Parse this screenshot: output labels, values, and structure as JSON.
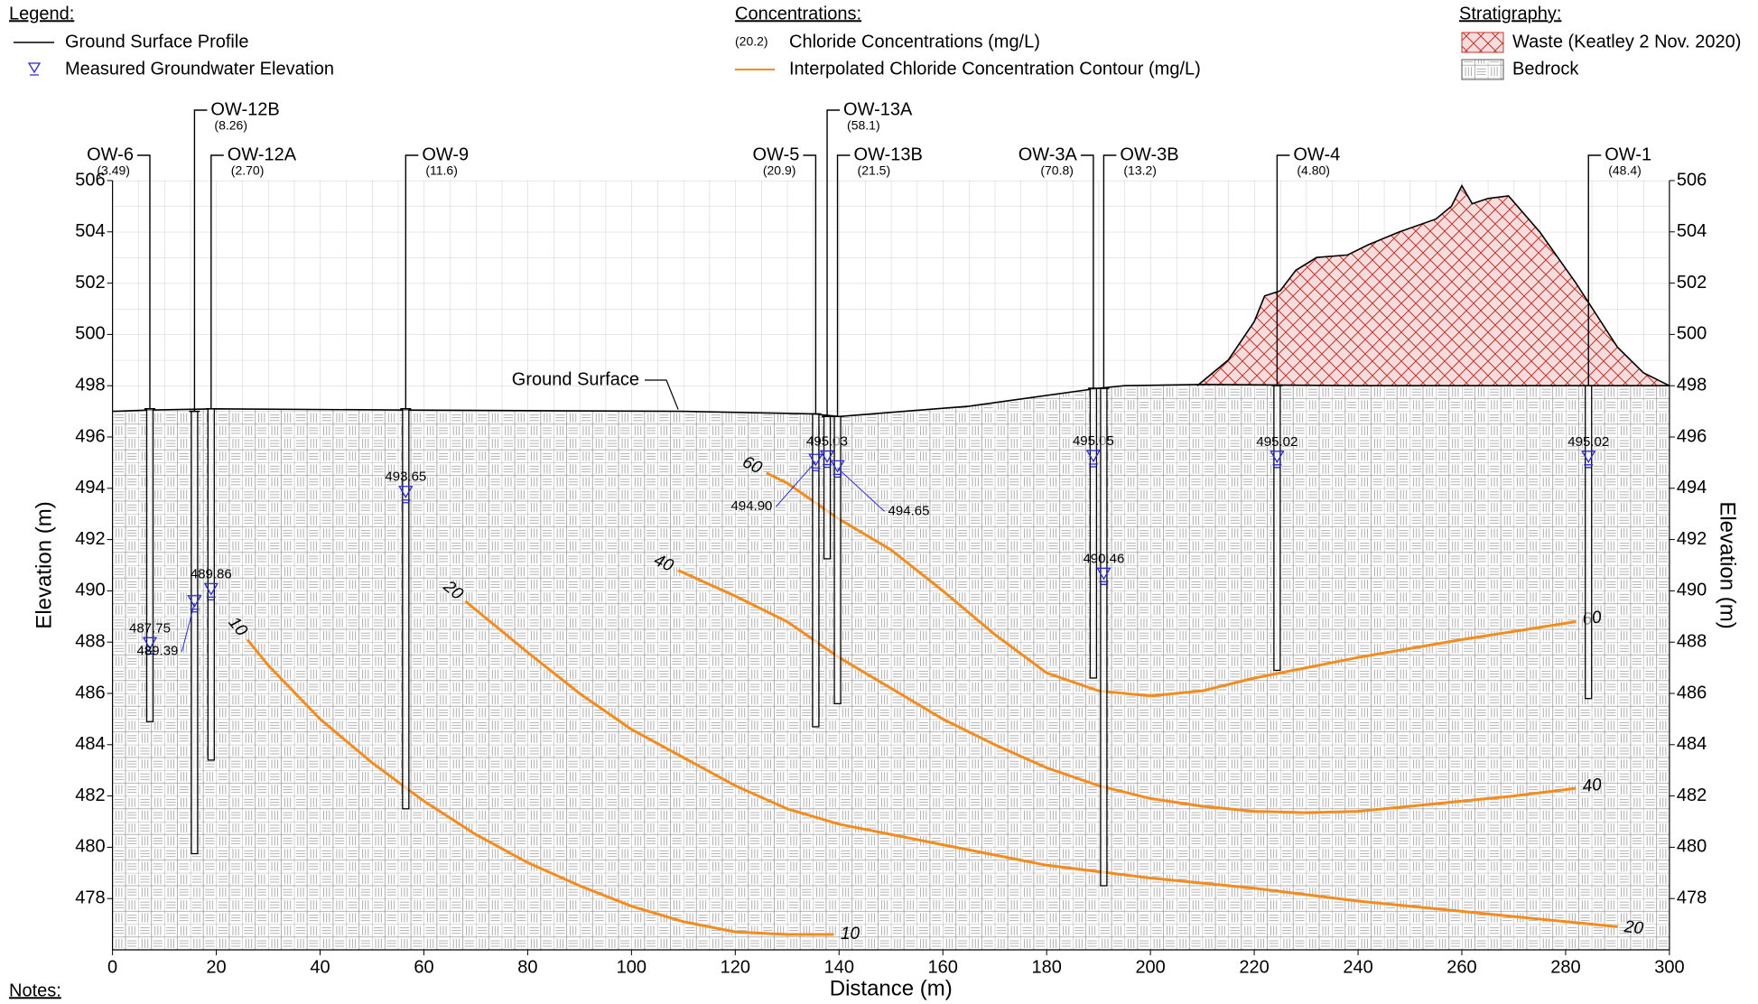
{
  "chart_data": {
    "type": "cross-section",
    "xlabel": "Distance (m)",
    "ylabel": "Elevation (m)",
    "y2label": "Elevation (m)",
    "xlim": [
      0,
      300
    ],
    "ylim": [
      476,
      506
    ],
    "y2lim": [
      476,
      506
    ],
    "xticks": [
      0,
      20,
      40,
      60,
      80,
      100,
      120,
      140,
      160,
      180,
      200,
      220,
      240,
      260,
      280,
      300
    ],
    "yticks": [
      478,
      480,
      482,
      484,
      486,
      488,
      490,
      492,
      494,
      496,
      498,
      500,
      502,
      504,
      506
    ],
    "y2ticks": [
      478,
      480,
      482,
      484,
      486,
      488,
      490,
      492,
      494,
      496,
      498,
      500,
      502,
      504,
      506
    ],
    "ground_color": "#000000",
    "water_color": "#2a2ad8",
    "contour_color": "#f28c1e",
    "waste_color": "#c0392b",
    "legend": [
      {
        "title": "Legend:",
        "items": [
          {
            "label": "Ground Surface Profile"
          },
          {
            "label": "Measured Groundwater Elevation"
          }
        ]
      },
      {
        "title": "Concentrations:",
        "items": [
          {
            "sample": "(20.2)",
            "label": "Chloride Concentrations (mg/L)"
          },
          {
            "label": "Interpolated Chloride Concentration Contour (mg/L)"
          }
        ]
      },
      {
        "title": "Stratigraphy:",
        "items": [
          {
            "label": "Waste (Keatley 2 Nov. 2020)"
          },
          {
            "label": "Bedrock"
          }
        ]
      }
    ],
    "ground": {
      "x": [
        0,
        7,
        20,
        57,
        110,
        135,
        140,
        165,
        190,
        195,
        210,
        240,
        270,
        300
      ],
      "values": [
        497.0,
        497.05,
        497.1,
        497.05,
        497.0,
        496.9,
        496.8,
        497.2,
        497.9,
        498.0,
        498.05,
        498.0,
        498.0,
        498.0
      ]
    },
    "waste": {
      "x": [
        209,
        215,
        220,
        222,
        225,
        228,
        232,
        238,
        242,
        248,
        255,
        258,
        260,
        262,
        265,
        269,
        275,
        282,
        290,
        295,
        300
      ],
      "values": [
        498.0,
        499.0,
        500.5,
        501.5,
        501.7,
        502.5,
        503.0,
        503.1,
        503.5,
        504.0,
        504.5,
        505.0,
        505.8,
        505.1,
        505.3,
        505.4,
        504.0,
        502.0,
        499.5,
        498.5,
        498.0
      ]
    },
    "annotations": [
      {
        "text": "Ground Surface"
      }
    ],
    "notes_label": "Notes:",
    "wells": [
      {
        "name": "OW-6",
        "concentration_label": "(3.49)",
        "x": 7.2,
        "top": 497.1,
        "bottom": 484.9,
        "water_level": 487.75
      },
      {
        "name": "OW-12B",
        "concentration_label": "(8.26)",
        "x": 15.8,
        "top": 497.0,
        "bottom": 479.75,
        "water_level": 489.39
      },
      {
        "name": "OW-12A",
        "concentration_label": "(2.70)",
        "x": 19.0,
        "top": 497.1,
        "bottom": 483.4,
        "water_level": 489.86
      },
      {
        "name": "OW-9",
        "concentration_label": "(11.6)",
        "x": 56.5,
        "top": 497.1,
        "bottom": 481.5,
        "water_level": 493.65
      },
      {
        "name": "OW-5",
        "concentration_label": "(20.9)",
        "x": 135.5,
        "top": 496.9,
        "bottom": 484.7,
        "water_level": 494.9,
        "water_level_label": "494.90"
      },
      {
        "name": "OW-13A",
        "concentration_label": "(58.1)",
        "x": 137.7,
        "top": 496.8,
        "bottom": 491.25,
        "water_level": 495.03
      },
      {
        "name": "OW-13B",
        "concentration_label": "(21.5)",
        "x": 139.7,
        "top": 496.8,
        "bottom": 485.6,
        "water_level": 494.65
      },
      {
        "name": "OW-3A",
        "concentration_label": "(70.8)",
        "x": 189.0,
        "top": 497.9,
        "bottom": 486.6,
        "water_level": 495.05
      },
      {
        "name": "OW-3B",
        "concentration_label": "(13.2)",
        "x": 191.0,
        "top": 497.9,
        "bottom": 478.5,
        "water_level": 490.46
      },
      {
        "name": "OW-4",
        "concentration_label": "(4.80)",
        "x": 224.4,
        "top": 498.0,
        "bottom": 486.9,
        "water_level": 495.02
      },
      {
        "name": "OW-1",
        "concentration_label": "(48.4)",
        "x": 284.4,
        "top": 498.0,
        "bottom": 485.8,
        "water_level": 495.02
      }
    ],
    "contours": [
      {
        "level": 10,
        "x": [
          26,
          30,
          40,
          50,
          60,
          70,
          80,
          90,
          100,
          110,
          120,
          130,
          139
        ],
        "values": [
          488.1,
          487.1,
          485.0,
          483.3,
          481.8,
          480.5,
          479.4,
          478.5,
          477.7,
          477.1,
          476.7,
          476.6,
          476.6
        ]
      },
      {
        "level": 20,
        "x": [
          68,
          80,
          90,
          100,
          110,
          120,
          130,
          140,
          160,
          180,
          200,
          220,
          240,
          260,
          280,
          290
        ],
        "values": [
          489.6,
          487.6,
          486.0,
          484.6,
          483.5,
          482.4,
          481.5,
          480.9,
          480.1,
          479.3,
          478.8,
          478.4,
          477.9,
          477.5,
          477.1,
          476.9
        ]
      },
      {
        "level": 40,
        "x": [
          109,
          120,
          130,
          140,
          150,
          160,
          170,
          180,
          190,
          200,
          210,
          220,
          230,
          240,
          250,
          260,
          270,
          282
        ],
        "values": [
          490.8,
          489.8,
          488.8,
          487.4,
          486.2,
          485.0,
          484.0,
          483.1,
          482.4,
          481.9,
          481.6,
          481.4,
          481.35,
          481.4,
          481.6,
          481.8,
          482.0,
          482.3
        ]
      },
      {
        "level": 60,
        "x": [
          126,
          130,
          140,
          150,
          160,
          170,
          180,
          190,
          200,
          210,
          220,
          230,
          240,
          260,
          282
        ],
        "values": [
          494.6,
          494.2,
          492.8,
          491.6,
          490.0,
          488.3,
          486.8,
          486.1,
          485.9,
          486.1,
          486.6,
          487.0,
          487.4,
          488.1,
          488.8
        ]
      }
    ]
  }
}
